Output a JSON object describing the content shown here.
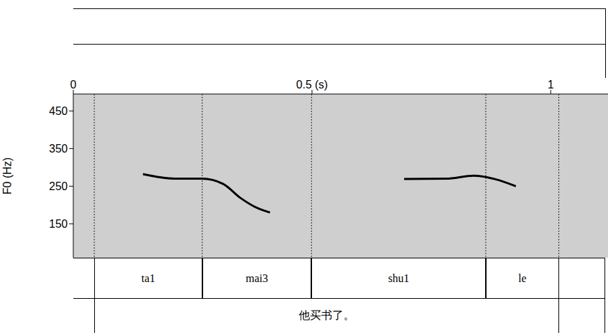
{
  "chart_data": {
    "type": "line",
    "y_label": "F0 (Hz)",
    "xlim": [
      0,
      1.12
    ],
    "xticks": [
      0,
      {
        "value": 0.5,
        "label": "0.5 (s)"
      },
      1
    ],
    "ylim": [
      60,
      495
    ],
    "yticks": [
      150,
      250,
      350,
      450
    ],
    "grid": false,
    "series": [
      {
        "color": "#000000",
        "x": [
          0.146,
          0.212,
          0.27,
          0.314,
          0.35,
          0.387,
          0.412
        ],
        "values": [
          282,
          270,
          270,
          256,
          219,
          191,
          180
        ]
      },
      {
        "color": "#000000",
        "x": [
          0.693,
          0.781,
          0.839,
          0.883,
          0.927
        ],
        "values": [
          269,
          270,
          278,
          269,
          250
        ]
      }
    ],
    "tiers": [
      {
        "intervals": [
          {
            "start": 0.044,
            "end": 0.27,
            "text": "ta1"
          },
          {
            "start": 0.27,
            "end": 0.499,
            "text": "mai3"
          },
          {
            "start": 0.499,
            "end": 0.864,
            "text": "shu1"
          },
          {
            "start": 0.864,
            "end": 1.017,
            "text": "le"
          }
        ]
      },
      {
        "intervals": [
          {
            "start": 0.044,
            "end": 1.017,
            "text": "他买书了。"
          }
        ]
      }
    ]
  }
}
